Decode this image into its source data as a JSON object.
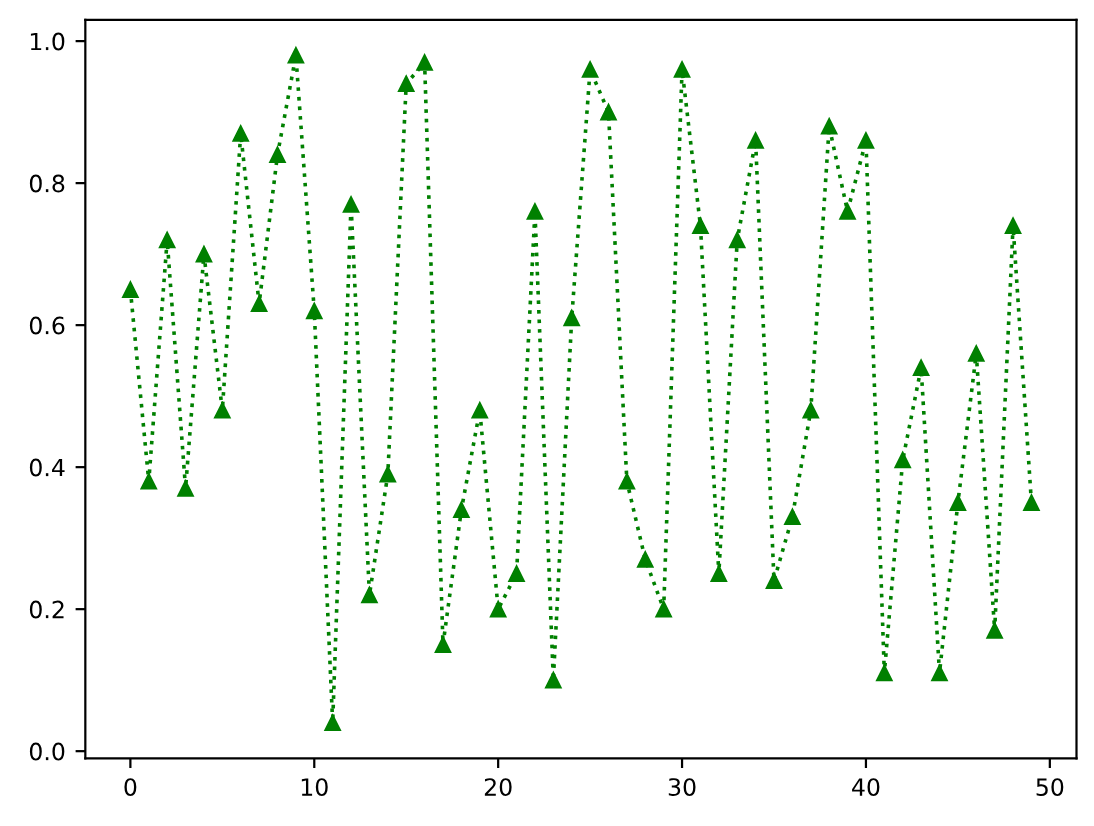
{
  "chart_data": {
    "type": "line",
    "x": [
      0,
      1,
      2,
      3,
      4,
      5,
      6,
      7,
      8,
      9,
      10,
      11,
      12,
      13,
      14,
      15,
      16,
      17,
      18,
      19,
      20,
      21,
      22,
      23,
      24,
      25,
      26,
      27,
      28,
      29,
      30,
      31,
      32,
      33,
      34,
      35,
      36,
      37,
      38,
      39,
      40,
      41,
      42,
      43,
      44,
      45,
      46,
      47,
      48,
      49
    ],
    "series": [
      {
        "color": "#008000",
        "values": [
          0.65,
          0.38,
          0.72,
          0.37,
          0.7,
          0.48,
          0.87,
          0.63,
          0.84,
          0.98,
          0.62,
          0.04,
          0.77,
          0.22,
          0.39,
          0.94,
          0.97,
          0.15,
          0.34,
          0.48,
          0.2,
          0.25,
          0.76,
          0.1,
          0.61,
          0.96,
          0.9,
          0.38,
          0.27,
          0.2,
          0.96,
          0.74,
          0.25,
          0.72,
          0.86,
          0.24,
          0.33,
          0.48,
          0.88,
          0.76,
          0.86,
          0.11,
          0.41,
          0.54,
          0.11,
          0.35,
          0.56,
          0.17,
          0.74,
          0.35
        ]
      }
    ],
    "xlim": [
      -2.45,
      51.45
    ],
    "ylim": [
      -0.01,
      1.03
    ],
    "xticks": [
      0,
      10,
      20,
      30,
      40,
      50
    ],
    "yticks": [
      {
        "value": 0,
        "label": "0.0"
      },
      {
        "value": 0.2,
        "label": "0.2"
      },
      {
        "value": 0.4,
        "label": "0.4"
      },
      {
        "value": 0.6,
        "label": "0.6"
      },
      {
        "value": 0.8,
        "label": "0.8"
      },
      {
        "value": 1,
        "label": "1.0"
      }
    ],
    "marker": "triangle",
    "line_style": "dotted"
  }
}
